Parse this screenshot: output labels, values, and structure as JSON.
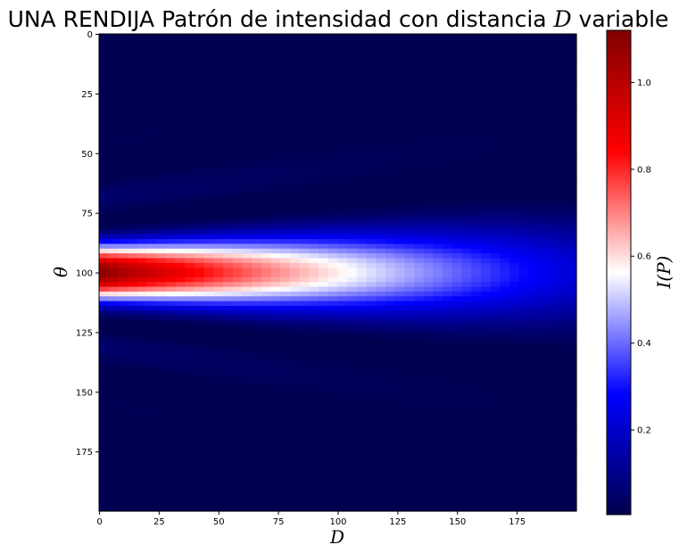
{
  "chart_data": {
    "type": "heatmap",
    "title": "UNA RENDIJA Patrón de intensidad con distancia D variable",
    "title_parts": [
      "UNA RENDIJA Patrón de intensidad con distancia ",
      "D",
      " variable"
    ],
    "xlabel": "D",
    "ylabel": "θ",
    "colorbar_label": "I(P)",
    "x_range": [
      0,
      199
    ],
    "y_range": [
      0,
      199
    ],
    "y_inverted": true,
    "x_ticks": [
      0,
      25,
      50,
      75,
      100,
      125,
      150,
      175
    ],
    "y_ticks": [
      0,
      25,
      50,
      75,
      100,
      125,
      150,
      175
    ],
    "colorbar_range": [
      0.005,
      1.12
    ],
    "colorbar_ticks": [
      0.2,
      0.4,
      0.6,
      0.8,
      1.0
    ],
    "colorbar_tick_labels": [
      "0.2",
      "0.4",
      "0.6",
      "0.8",
      "1.0"
    ],
    "colormap": "seismic",
    "colormap_stops": [
      "#00004d",
      "#0000ff",
      "#ffffff",
      "#ff0000",
      "#800000"
    ],
    "field": {
      "center_theta": 100,
      "peak_at_D0": 1.12,
      "peak_at_D199": 0.22,
      "central_half_width_D0": 16,
      "central_half_width_D199": 30,
      "side_lobe_level": 0.035,
      "background": 0.01
    },
    "grid": false
  }
}
